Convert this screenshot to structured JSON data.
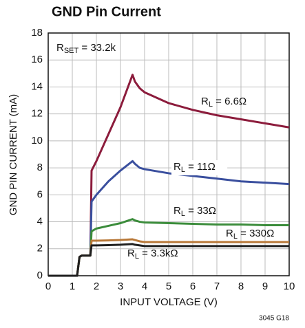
{
  "chart_data": {
    "type": "line",
    "title": "GND Pin Current",
    "xlabel": "INPUT VOLTAGE (V)",
    "ylabel": "GND PIN CURRENT (mA)",
    "footnote": "3045 G18",
    "annotation": [
      "R",
      "SET",
      " = 33.2k"
    ],
    "x": [
      0,
      1.2,
      1.3,
      1.4,
      1.75,
      1.8,
      2,
      2.5,
      3,
      3.5,
      3.6,
      3.8,
      4,
      5,
      6,
      7,
      8,
      9,
      10
    ],
    "series": [
      {
        "label_parts": [
          "R",
          "L",
          " = 6.6Ω"
        ],
        "color": "#8c1c3c",
        "values": [
          0,
          0,
          1.4,
          1.5,
          1.5,
          7.8,
          8.5,
          10.5,
          12.5,
          14.9,
          14.4,
          13.9,
          13.6,
          12.8,
          12.3,
          11.9,
          11.6,
          11.3,
          11.0
        ]
      },
      {
        "label_parts": [
          "R",
          "L",
          " = 11Ω"
        ],
        "color": "#3a4f9e",
        "values": [
          0,
          0,
          1.4,
          1.5,
          1.5,
          5.5,
          6,
          7,
          7.8,
          8.5,
          8.3,
          8.0,
          7.9,
          7.6,
          7.4,
          7.2,
          7.0,
          6.9,
          6.8
        ]
      },
      {
        "label_parts": [
          "R",
          "L",
          " = 33Ω"
        ],
        "color": "#3b8c3b",
        "values": [
          0,
          0,
          1.4,
          1.5,
          1.5,
          3.3,
          3.5,
          3.7,
          3.9,
          4.2,
          4.1,
          4.0,
          3.95,
          3.9,
          3.85,
          3.8,
          3.8,
          3.75,
          3.75
        ]
      },
      {
        "label_parts": [
          "R",
          "L",
          " = 330Ω"
        ],
        "color": "#b87838",
        "values": [
          0,
          0,
          1.4,
          1.5,
          1.5,
          2.6,
          2.6,
          2.62,
          2.65,
          2.7,
          2.65,
          2.55,
          2.5,
          2.5,
          2.5,
          2.5,
          2.5,
          2.5,
          2.5
        ]
      },
      {
        "label_parts": [
          "R",
          "L",
          " = 3.3kΩ"
        ],
        "color": "#1e1e1e",
        "values": [
          0,
          0,
          1.4,
          1.5,
          1.5,
          2.25,
          2.25,
          2.27,
          2.3,
          2.35,
          2.3,
          2.25,
          2.2,
          2.2,
          2.2,
          2.2,
          2.2,
          2.2,
          2.2
        ]
      }
    ],
    "xlim": [
      0,
      10
    ],
    "xticks": [
      0,
      1,
      2,
      3,
      4,
      5,
      6,
      7,
      8,
      9,
      10
    ],
    "ylim": [
      0,
      18
    ],
    "yticks": [
      0,
      2,
      4,
      6,
      8,
      10,
      12,
      14,
      16,
      18
    ],
    "grid": true
  }
}
